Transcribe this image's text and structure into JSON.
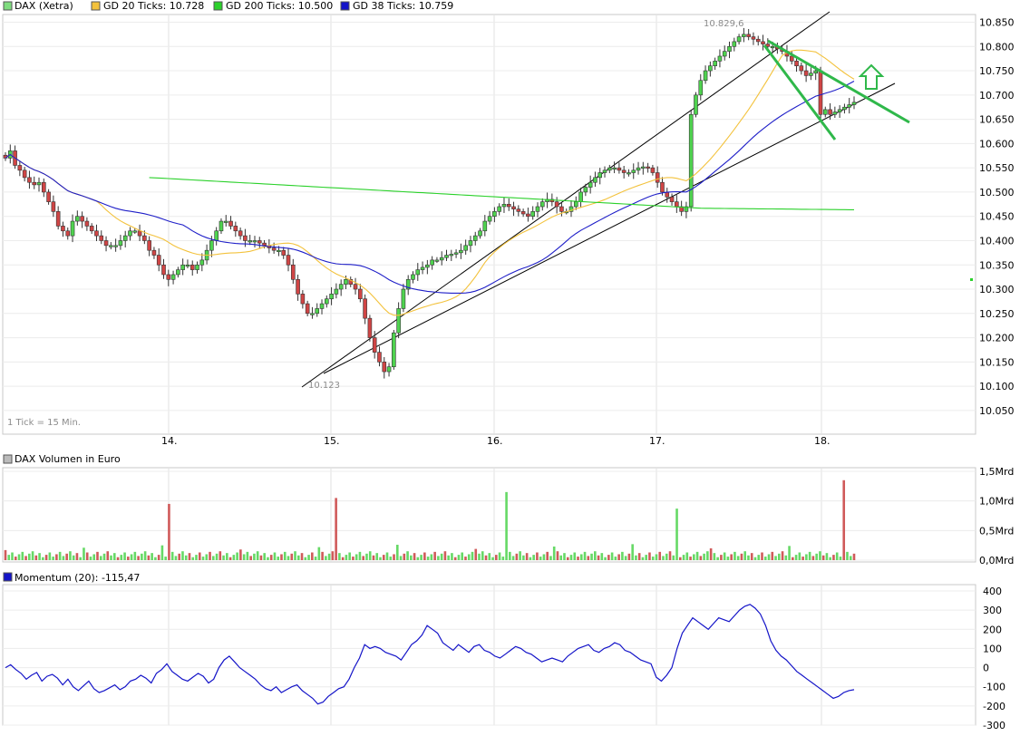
{
  "chart_data": [
    {
      "type": "candlestick",
      "title": "DAX (Xetra)",
      "legend": [
        {
          "label": "DAX (Xetra)",
          "color": "#7fdc7f"
        },
        {
          "label": "GD 20 Ticks: 10.728",
          "color": "#f3c23c"
        },
        {
          "label": "GD 200 Ticks: 10.500",
          "color": "#2bd12b"
        },
        {
          "label": "GD 38 Ticks: 10.759",
          "color": "#1414c8"
        }
      ],
      "tick_note": "1 Tick = 15 Min.",
      "ylim": [
        10000,
        10880
      ],
      "y_ticks": [
        10050,
        10100,
        10150,
        10200,
        10250,
        10300,
        10350,
        10400,
        10450,
        10500,
        10550,
        10600,
        10650,
        10700,
        10750,
        10800,
        10850
      ],
      "y_tick_labels": [
        "10.050",
        "10.100",
        "10.150",
        "10.200",
        "10.250",
        "10.300",
        "10.350",
        "10.400",
        "10.450",
        "10.500",
        "10.550",
        "10.600",
        "10.650",
        "10.700",
        "10.750",
        "10.800",
        "10.850"
      ],
      "x_labels": [
        "14.",
        "15.",
        "16.",
        "17.",
        "18."
      ],
      "annotations": [
        {
          "text": "10.829,6"
        },
        {
          "text": "10.123"
        }
      ],
      "closes": [
        10570,
        10585,
        10555,
        10545,
        10530,
        10520,
        10515,
        10520,
        10500,
        10480,
        10460,
        10430,
        10420,
        10410,
        10440,
        10450,
        10440,
        10430,
        10420,
        10410,
        10400,
        10390,
        10390,
        10390,
        10400,
        10410,
        10420,
        10420,
        10410,
        10400,
        10380,
        10370,
        10350,
        10330,
        10320,
        10330,
        10340,
        10350,
        10350,
        10340,
        10350,
        10360,
        10380,
        10400,
        10420,
        10440,
        10440,
        10430,
        10420,
        10410,
        10400,
        10400,
        10400,
        10395,
        10390,
        10385,
        10380,
        10380,
        10370,
        10350,
        10320,
        10290,
        10270,
        10250,
        10250,
        10260,
        10270,
        10280,
        10290,
        10300,
        10310,
        10320,
        10310,
        10300,
        10280,
        10240,
        10200,
        10170,
        10150,
        10130,
        10140,
        10210,
        10260,
        10300,
        10320,
        10330,
        10340,
        10345,
        10350,
        10360,
        10360,
        10365,
        10370,
        10372,
        10375,
        10380,
        10390,
        10400,
        10410,
        10420,
        10440,
        10450,
        10460,
        10470,
        10475,
        10470,
        10465,
        10460,
        10455,
        10450,
        10460,
        10470,
        10480,
        10485,
        10480,
        10470,
        10460,
        10460,
        10470,
        10480,
        10500,
        10510,
        10520,
        10530,
        10540,
        10545,
        10550,
        10550,
        10545,
        10540,
        10540,
        10545,
        10550,
        10552,
        10550,
        10540,
        10520,
        10500,
        10490,
        10480,
        10470,
        10460,
        10470,
        10660,
        10700,
        10730,
        10750,
        10760,
        10770,
        10780,
        10790,
        10800,
        10810,
        10820,
        10825,
        10820,
        10815,
        10810,
        10805,
        10800,
        10800,
        10795,
        10790,
        10780,
        10770,
        10760,
        10750,
        10740,
        10745,
        10750,
        10660,
        10670,
        10660,
        10665,
        10670,
        10675,
        10680,
        10685
      ]
    },
    {
      "type": "bar",
      "title": "DAX Volumen in Euro",
      "ylim": [
        0,
        1.5
      ],
      "y_tick_labels": [
        "0,0Mrd",
        "0,5Mrd",
        "1,0Mrd",
        "1,5Mrd"
      ],
      "spikes": [
        {
          "day_index": 48,
          "value": 0.95,
          "color": "#d05a5a"
        },
        {
          "day_index": 97,
          "value": 1.05,
          "color": "#d05a5a"
        },
        {
          "day_index": 147,
          "value": 1.15,
          "color": "#66d966"
        },
        {
          "day_index": 197,
          "value": 0.87,
          "color": "#66d966"
        },
        {
          "day_index": 246,
          "value": 1.35,
          "color": "#d05a5a"
        }
      ]
    },
    {
      "type": "line",
      "title": "Momentum (20): -115,47",
      "ylim": [
        -300,
        400
      ],
      "y_ticks": [
        400,
        300,
        200,
        100,
        0,
        -100,
        -200,
        -300
      ],
      "values": [
        0,
        15,
        -10,
        -30,
        -60,
        -40,
        -25,
        -70,
        -45,
        -35,
        -55,
        -90,
        -60,
        -100,
        -120,
        -95,
        -70,
        -110,
        -130,
        -120,
        -105,
        -90,
        -115,
        -100,
        -70,
        -60,
        -40,
        -55,
        -80,
        -30,
        -10,
        20,
        -20,
        -40,
        -60,
        -70,
        -50,
        -30,
        -45,
        -80,
        -60,
        0,
        40,
        60,
        30,
        0,
        -20,
        -40,
        -60,
        -90,
        -110,
        -120,
        -100,
        -130,
        -115,
        -100,
        -90,
        -120,
        -140,
        -160,
        -190,
        -180,
        -150,
        -130,
        -110,
        -100,
        -60,
        0,
        50,
        120,
        100,
        110,
        100,
        80,
        70,
        60,
        40,
        80,
        120,
        140,
        170,
        220,
        200,
        180,
        130,
        110,
        90,
        120,
        100,
        80,
        110,
        120,
        90,
        80,
        60,
        50,
        70,
        90,
        110,
        100,
        80,
        70,
        50,
        30,
        40,
        50,
        40,
        30,
        60,
        80,
        100,
        110,
        120,
        90,
        80,
        100,
        110,
        130,
        120,
        90,
        80,
        60,
        40,
        30,
        20,
        -50,
        -70,
        -40,
        0,
        100,
        180,
        220,
        260,
        240,
        220,
        200,
        230,
        260,
        250,
        240,
        270,
        300,
        320,
        330,
        310,
        280,
        220,
        140,
        90,
        60,
        40,
        10,
        -20,
        -40,
        -60,
        -80,
        -100,
        -120,
        -140,
        -160,
        -150,
        -130,
        -120,
        -115
      ]
    }
  ]
}
